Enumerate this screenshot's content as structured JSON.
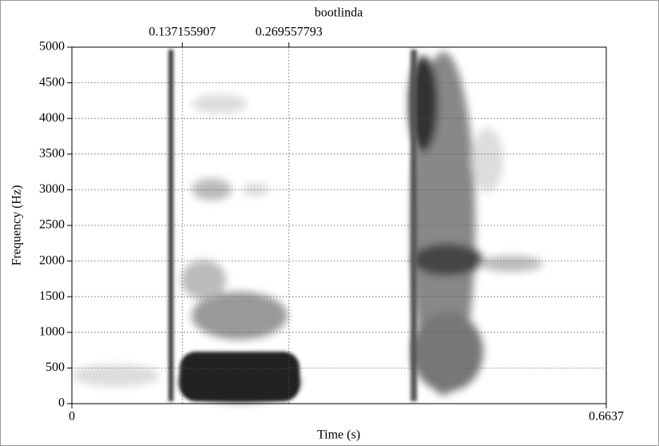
{
  "chart_data": {
    "type": "spectrogram",
    "title": "bootlinda",
    "xlabel": "Time (s)",
    "ylabel": "Frequency (Hz)",
    "xlim": [
      0,
      0.6637
    ],
    "ylim": [
      0,
      5000
    ],
    "xticks": [
      0,
      0.6637
    ],
    "yticks": [
      0,
      500,
      1000,
      1500,
      2000,
      2500,
      3000,
      3500,
      4000,
      4500,
      5000
    ],
    "markers": [
      0.137155907,
      0.269557793
    ],
    "grid": true
  }
}
